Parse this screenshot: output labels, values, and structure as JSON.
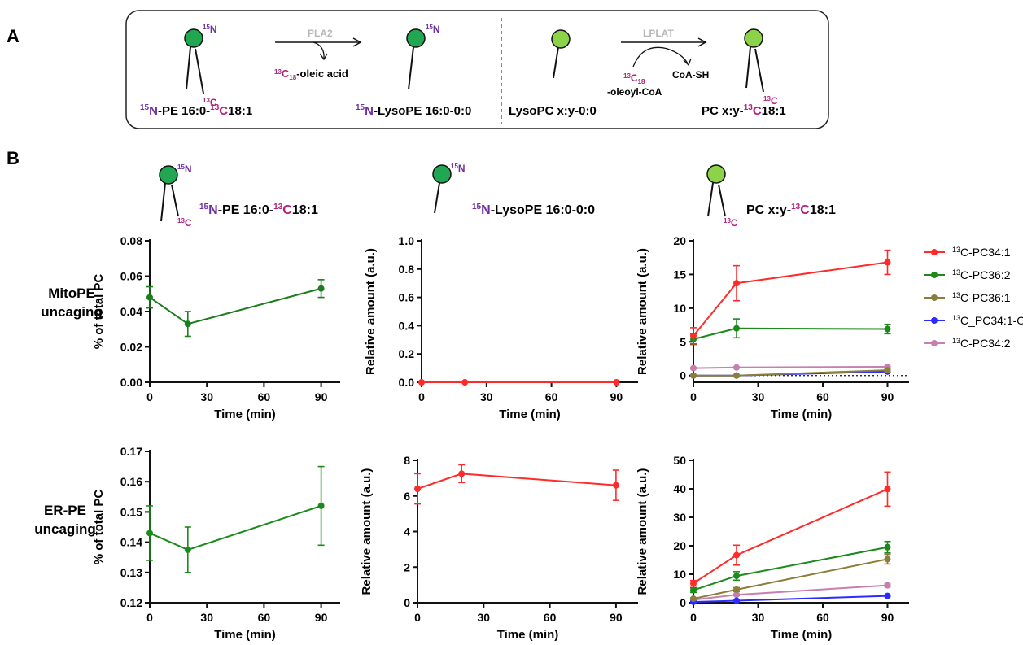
{
  "panel_labels": {
    "a": "A",
    "b": "B"
  },
  "colors": {
    "purple": "#6f2fa0",
    "magenta": "#b0217a",
    "head_dark": "#21a652",
    "head_light": "#8cd34a",
    "gray": "#b8b8b8",
    "green_series": "#1b7d1b",
    "red_series": "#ff2b2b"
  },
  "scheme": {
    "pla2_enzyme": "PLA2",
    "lplat_enzyme": "LPLAT",
    "oleic_acid_suffix": "-oleic acid",
    "oleoyl_coa_suffix": "-oleoyl-CoA",
    "coa_sh": "CoA-SH",
    "n15": "15N",
    "c13": "13C",
    "c13_18": "13C18",
    "pe_label": "15N-PE 16:0-13C18:1",
    "lysope_label": "15N-LysoPE 16:0-0:0",
    "lysopc_label": "LysoPC x:y-0:0",
    "pc_label": "PC x:y-13C18:1"
  },
  "column_titles": [
    "15N-PE 16:0-13C18:1",
    "15N-LysoPE 16:0-0:0",
    "PC x:y-13C18:1"
  ],
  "row_labels": [
    [
      "MitoPE",
      "uncaging"
    ],
    [
      "ER-PE",
      "uncaging"
    ]
  ],
  "legend": [
    "13C-PC34:1",
    "13C-PC36:2",
    "13C-PC36:1",
    "13C_PC34:1-O",
    "13C-PC34:2"
  ],
  "chart_data": [
    {
      "id": "mito-pe",
      "type": "line",
      "x": [
        0,
        20,
        90
      ],
      "xlabel": "Time (min)",
      "ylabel": "% of total PC",
      "xlim": [
        0,
        100
      ],
      "ylim": [
        0,
        0.08
      ],
      "yticks": [
        "0.00",
        "0.02",
        "0.04",
        "0.06",
        "0.08"
      ],
      "xticks": [
        "0",
        "30",
        "60",
        "90"
      ],
      "series": [
        {
          "color": "#1b7d1b",
          "values": [
            0.048,
            0.033,
            0.053
          ],
          "err": [
            0.006,
            0.007,
            0.005
          ]
        }
      ]
    },
    {
      "id": "mito-lysope",
      "type": "line",
      "x": [
        0,
        20,
        90
      ],
      "xlabel": "Time (min)",
      "ylabel": "Relative amount (a.u.)",
      "xlim": [
        0,
        100
      ],
      "ylim": [
        0,
        1.0
      ],
      "yticks": [
        "0.0",
        "0.2",
        "0.4",
        "0.6",
        "0.8",
        "1.0"
      ],
      "xticks": [
        "0",
        "30",
        "60",
        "90"
      ],
      "series": [
        {
          "color": "#ff2b2b",
          "values": [
            0,
            0,
            0
          ],
          "err": [
            0,
            0,
            0
          ]
        }
      ]
    },
    {
      "id": "mito-pc",
      "type": "line",
      "x": [
        0,
        20,
        90
      ],
      "xlabel": "Time (min)",
      "ylabel": "Relative amount (a.u.)",
      "xlim": [
        0,
        100
      ],
      "ylim": [
        -1,
        20
      ],
      "yticks": [
        "0",
        "5",
        "10",
        "15",
        "20"
      ],
      "ytick_values": [
        0,
        5,
        10,
        15,
        20
      ],
      "xticks": [
        "0",
        "30",
        "60",
        "90"
      ],
      "zero_dotted": true,
      "series": [
        {
          "name": "13C-PC34:1",
          "color": "#ff2b2b",
          "values": [
            5.9,
            13.7,
            16.8
          ],
          "err": [
            1.2,
            2.6,
            1.8
          ]
        },
        {
          "name": "13C-PC36:2",
          "color": "#1b8a1b",
          "values": [
            5.4,
            7.0,
            6.9
          ],
          "err": [
            0.8,
            1.4,
            0.7
          ]
        },
        {
          "name": "13C-PC36:1",
          "color": "#8b7d3a",
          "values": [
            0.0,
            0.0,
            0.8
          ],
          "err": [
            0,
            0,
            0.2
          ]
        },
        {
          "name": "13C_PC34:1-O",
          "color": "#2b2bff",
          "values": [
            0.0,
            0.0,
            0.6
          ],
          "err": [
            0,
            0,
            0.1
          ]
        },
        {
          "name": "13C-PC34:2",
          "color": "#c77fb0",
          "values": [
            1.1,
            1.2,
            1.3
          ],
          "err": [
            0.1,
            0.1,
            0.1
          ]
        }
      ]
    },
    {
      "id": "er-pe",
      "type": "line",
      "x": [
        0,
        20,
        90
      ],
      "xlabel": "Time (min)",
      "ylabel": "% of total PC",
      "xlim": [
        0,
        100
      ],
      "ylim": [
        0.12,
        0.17
      ],
      "yticks": [
        "0.12",
        "0.13",
        "0.14",
        "0.15",
        "0.16",
        "0.17"
      ],
      "xticks": [
        "0",
        "30",
        "60",
        "90"
      ],
      "series": [
        {
          "color": "#1b8a1b",
          "values": [
            0.143,
            0.1375,
            0.152
          ],
          "err": [
            0.009,
            0.0075,
            0.013
          ]
        }
      ]
    },
    {
      "id": "er-lysope",
      "type": "line",
      "x": [
        0,
        20,
        90
      ],
      "xlabel": "Time (min)",
      "ylabel": "Relative amount (a.u.)",
      "xlim": [
        0,
        100
      ],
      "ylim": [
        0,
        8
      ],
      "yticks": [
        "0",
        "2",
        "4",
        "6",
        "8"
      ],
      "xticks": [
        "0",
        "30",
        "60",
        "90"
      ],
      "series": [
        {
          "color": "#ff2b2b",
          "values": [
            6.4,
            7.25,
            6.6
          ],
          "err": [
            0.85,
            0.5,
            0.85
          ]
        }
      ]
    },
    {
      "id": "er-pc",
      "type": "line",
      "x": [
        0,
        20,
        90
      ],
      "xlabel": "Time (min)",
      "ylabel": "Relative amount (a.u.)",
      "xlim": [
        0,
        100
      ],
      "ylim": [
        0,
        50
      ],
      "yticks": [
        "0",
        "10",
        "20",
        "30",
        "40",
        "50"
      ],
      "xticks": [
        "0",
        "30",
        "60",
        "90"
      ],
      "series": [
        {
          "name": "13C-PC34:1",
          "color": "#ff2b2b",
          "values": [
            6.8,
            16.7,
            39.9
          ],
          "err": [
            1.0,
            3.5,
            6.0
          ]
        },
        {
          "name": "13C-PC36:2",
          "color": "#1b8a1b",
          "values": [
            4.4,
            9.4,
            19.5
          ],
          "err": [
            0.8,
            1.5,
            2.0
          ]
        },
        {
          "name": "13C-PC36:1",
          "color": "#8b7d3a",
          "values": [
            1.4,
            4.6,
            15.3
          ],
          "err": [
            0.3,
            0.7,
            1.7
          ]
        },
        {
          "name": "13C_PC34:1-O",
          "color": "#2b2bff",
          "values": [
            0.3,
            0.7,
            2.4
          ],
          "err": [
            0.1,
            0.1,
            0.3
          ]
        },
        {
          "name": "13C-PC34:2",
          "color": "#c77fb0",
          "values": [
            1.0,
            2.8,
            6.1
          ],
          "err": [
            0.2,
            0.3,
            0.5
          ]
        }
      ]
    }
  ]
}
